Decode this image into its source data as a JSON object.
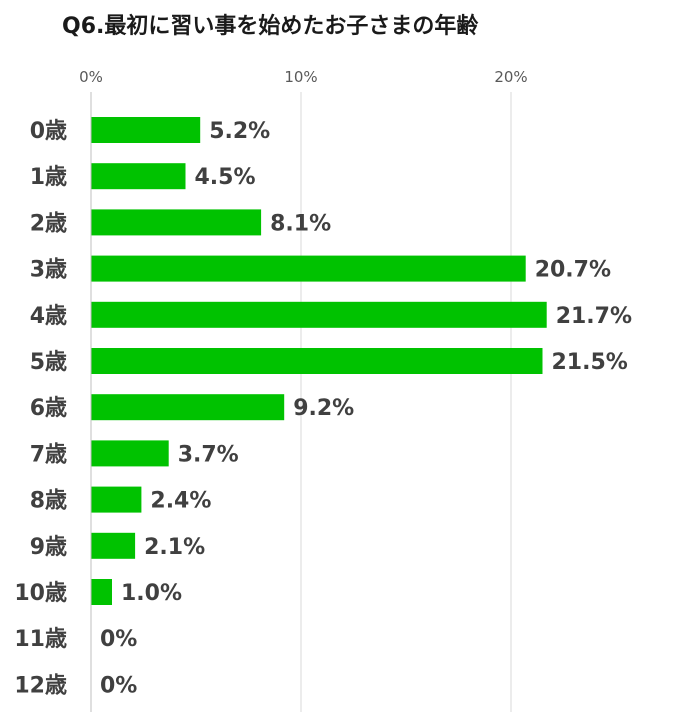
{
  "chart_data": {
    "type": "bar",
    "orientation": "horizontal",
    "title": "Q6.最初に習い事を始めたお子さまの年齢",
    "categories": [
      "0歳",
      "1歳",
      "2歳",
      "3歳",
      "4歳",
      "5歳",
      "6歳",
      "7歳",
      "8歳",
      "9歳",
      "10歳",
      "11歳",
      "12歳"
    ],
    "values": [
      5.2,
      4.5,
      8.1,
      20.7,
      21.7,
      21.5,
      9.2,
      3.7,
      2.4,
      2.1,
      1.0,
      0,
      0
    ],
    "data_labels": [
      "5.2%",
      "4.5%",
      "8.1%",
      "20.7%",
      "21.7%",
      "21.5%",
      "9.2%",
      "3.7%",
      "2.4%",
      "2.1%",
      "1.0%",
      "0%",
      "0%"
    ],
    "x_ticks": [
      0,
      10,
      20
    ],
    "x_tick_labels": [
      "0%",
      "10%",
      "20%"
    ],
    "xlim": [
      0,
      25
    ],
    "axis_position": "top",
    "grid": true,
    "bar_color": "#00c200"
  }
}
